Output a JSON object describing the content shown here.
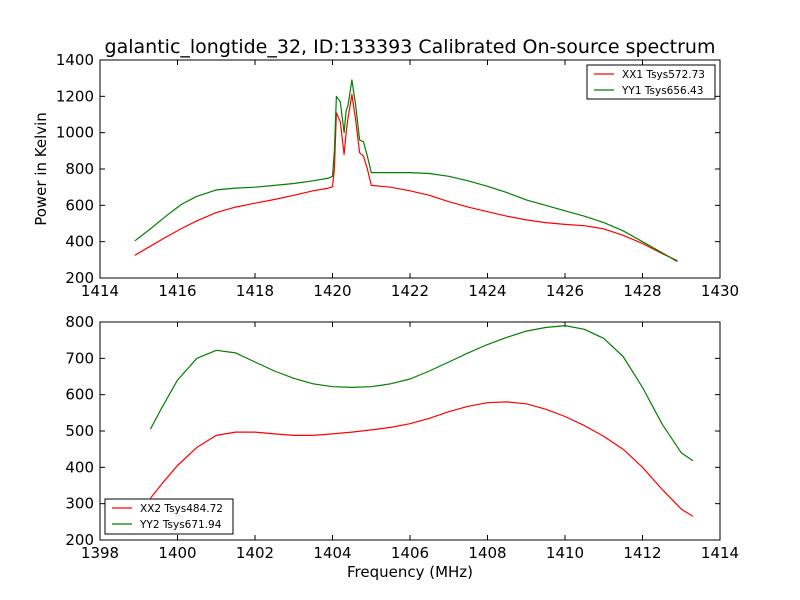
{
  "chart_data": [
    {
      "type": "line",
      "title": "galantic_longtide_32, ID:133393 Calibrated On-source spectrum",
      "xlabel": "",
      "ylabel": "Power in Kelvin",
      "xlim": [
        1414,
        1430
      ],
      "ylim": [
        200,
        1400
      ],
      "xticks": [
        "1414",
        "1416",
        "1418",
        "1420",
        "1422",
        "1424",
        "1426",
        "1428",
        "1430"
      ],
      "yticks": [
        "200",
        "400",
        "600",
        "800",
        "1000",
        "1200",
        "1400"
      ],
      "grid": false,
      "legend_position": "top-right",
      "series": [
        {
          "name": "XX1 Tsys572.73",
          "color": "#ff0000",
          "x": [
            1414.9,
            1415.3,
            1415.7,
            1416.1,
            1416.5,
            1417.0,
            1417.5,
            1418.0,
            1418.5,
            1419.0,
            1419.5,
            1419.9,
            1420.0,
            1420.05,
            1420.1,
            1420.2,
            1420.3,
            1420.35,
            1420.4,
            1420.5,
            1420.6,
            1420.7,
            1420.8,
            1420.9,
            1421.0,
            1421.5,
            1422.0,
            1422.5,
            1423.0,
            1423.5,
            1424.0,
            1424.5,
            1425.0,
            1425.5,
            1426.0,
            1426.5,
            1427.0,
            1427.5,
            1428.0,
            1428.5,
            1428.9
          ],
          "y": [
            325,
            375,
            425,
            472,
            515,
            560,
            590,
            612,
            632,
            655,
            680,
            695,
            702,
            800,
            1110,
            1060,
            880,
            1000,
            1080,
            1210,
            1070,
            890,
            870,
            800,
            710,
            700,
            680,
            655,
            620,
            590,
            565,
            540,
            520,
            505,
            495,
            488,
            470,
            435,
            390,
            335,
            295
          ]
        },
        {
          "name": "YY1 Tsys656.43",
          "color": "#008000",
          "x": [
            1414.9,
            1415.3,
            1415.7,
            1416.1,
            1416.5,
            1417.0,
            1417.5,
            1418.0,
            1418.5,
            1419.0,
            1419.5,
            1419.9,
            1420.0,
            1420.05,
            1420.1,
            1420.2,
            1420.3,
            1420.35,
            1420.4,
            1420.5,
            1420.6,
            1420.7,
            1420.8,
            1420.9,
            1421.0,
            1421.5,
            1422.0,
            1422.5,
            1423.0,
            1423.5,
            1424.0,
            1424.5,
            1425.0,
            1425.5,
            1426.0,
            1426.5,
            1427.0,
            1427.5,
            1428.0,
            1428.5,
            1428.9
          ],
          "y": [
            405,
            470,
            540,
            605,
            650,
            685,
            695,
            700,
            710,
            720,
            735,
            750,
            760,
            900,
            1200,
            1170,
            1000,
            1120,
            1150,
            1290,
            1150,
            960,
            950,
            870,
            780,
            780,
            780,
            775,
            760,
            735,
            705,
            670,
            630,
            600,
            570,
            540,
            505,
            460,
            400,
            340,
            290
          ]
        }
      ]
    },
    {
      "type": "line",
      "title": "",
      "xlabel": "Frequency (MHz)",
      "ylabel": "",
      "xlim": [
        1398,
        1414
      ],
      "ylim": [
        200,
        800
      ],
      "xticks": [
        "1398",
        "1400",
        "1402",
        "1404",
        "1406",
        "1408",
        "1410",
        "1412",
        "1414"
      ],
      "yticks": [
        "200",
        "300",
        "400",
        "500",
        "600",
        "700",
        "800"
      ],
      "grid": false,
      "legend_position": "bottom-left",
      "series": [
        {
          "name": "XX2 Tsys484.72",
          "color": "#ff0000",
          "x": [
            1399.3,
            1399.6,
            1400.0,
            1400.5,
            1401.0,
            1401.5,
            1402.0,
            1402.5,
            1403.0,
            1403.5,
            1404.0,
            1404.5,
            1405.0,
            1405.5,
            1406.0,
            1406.5,
            1407.0,
            1407.5,
            1408.0,
            1408.5,
            1409.0,
            1409.5,
            1410.0,
            1410.5,
            1411.0,
            1411.5,
            1412.0,
            1412.5,
            1413.0,
            1413.3
          ],
          "y": [
            315,
            355,
            405,
            455,
            488,
            497,
            497,
            492,
            488,
            488,
            492,
            497,
            503,
            510,
            520,
            535,
            553,
            568,
            578,
            580,
            575,
            560,
            540,
            515,
            485,
            450,
            400,
            340,
            285,
            265
          ]
        },
        {
          "name": "YY2 Tsys671.94",
          "color": "#008000",
          "x": [
            1399.3,
            1399.6,
            1400.0,
            1400.5,
            1401.0,
            1401.5,
            1402.0,
            1402.5,
            1403.0,
            1403.5,
            1404.0,
            1404.5,
            1405.0,
            1405.5,
            1406.0,
            1406.5,
            1407.0,
            1407.5,
            1408.0,
            1408.5,
            1409.0,
            1409.5,
            1410.0,
            1410.5,
            1411.0,
            1411.5,
            1412.0,
            1412.5,
            1413.0,
            1413.3
          ],
          "y": [
            505,
            565,
            640,
            700,
            722,
            715,
            690,
            665,
            645,
            630,
            622,
            620,
            622,
            630,
            643,
            665,
            690,
            715,
            738,
            758,
            775,
            785,
            790,
            780,
            755,
            705,
            620,
            520,
            440,
            418
          ]
        }
      ]
    }
  ]
}
